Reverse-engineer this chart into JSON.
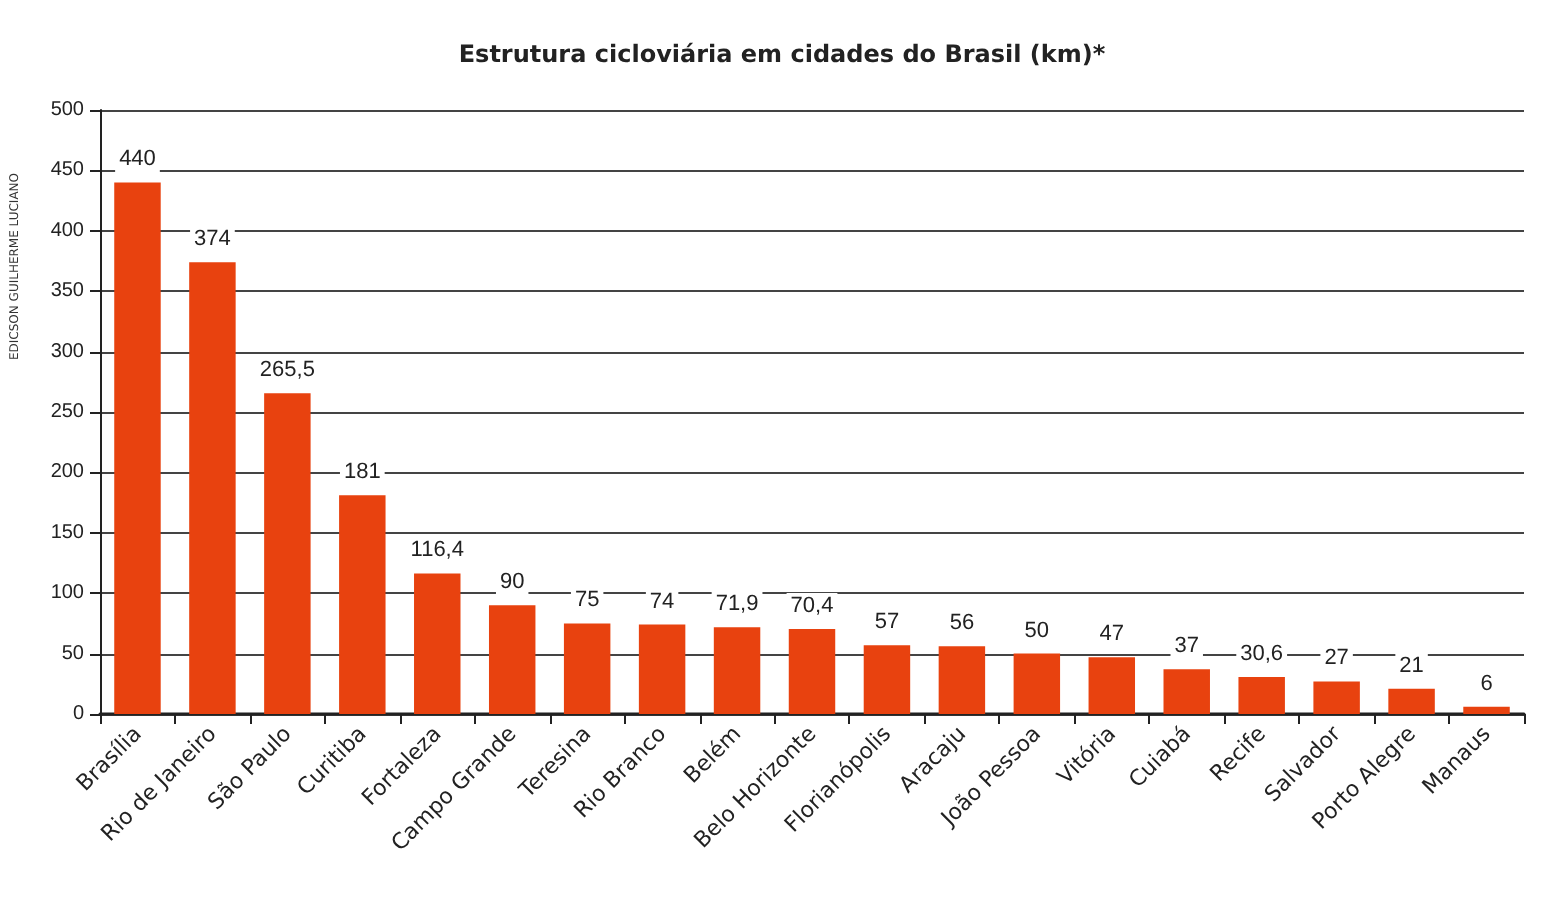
{
  "chart_data": {
    "type": "bar",
    "title": "Estrutura cicloviária em cidades do Brasil (km)*",
    "categories": [
      "Brasília",
      "Rio de Janeiro",
      "São Paulo",
      "Curitiba",
      "Fortaleza",
      "Campo Grande",
      "Teresina",
      "Rio Branco",
      "Belém",
      "Belo Horizonte",
      "Florianópolis",
      "Aracaju",
      "João Pessoa",
      "Vitória",
      "Cuiabá",
      "Recife",
      "Salvador",
      "Porto Alegre",
      "Manaus"
    ],
    "values": [
      440,
      374,
      265.5,
      181,
      116.4,
      90,
      75,
      74,
      71.9,
      70.4,
      57,
      56,
      50,
      47,
      37,
      30.6,
      27,
      21,
      6
    ],
    "value_labels": [
      "440",
      "374",
      "265,5",
      "181",
      "116,4",
      "90",
      "75",
      "74",
      "71,9",
      "70,4",
      "57",
      "56",
      "50",
      "47",
      "37",
      "30,6",
      "27",
      "21",
      "6"
    ],
    "color": "#e8420f",
    "ylim": [
      0,
      500
    ],
    "yticks": [
      0,
      50,
      100,
      150,
      200,
      250,
      300,
      350,
      400,
      450,
      500
    ],
    "grid": "y",
    "annotations": [
      "EDICSON GUILHERME LUCIANO"
    ]
  }
}
